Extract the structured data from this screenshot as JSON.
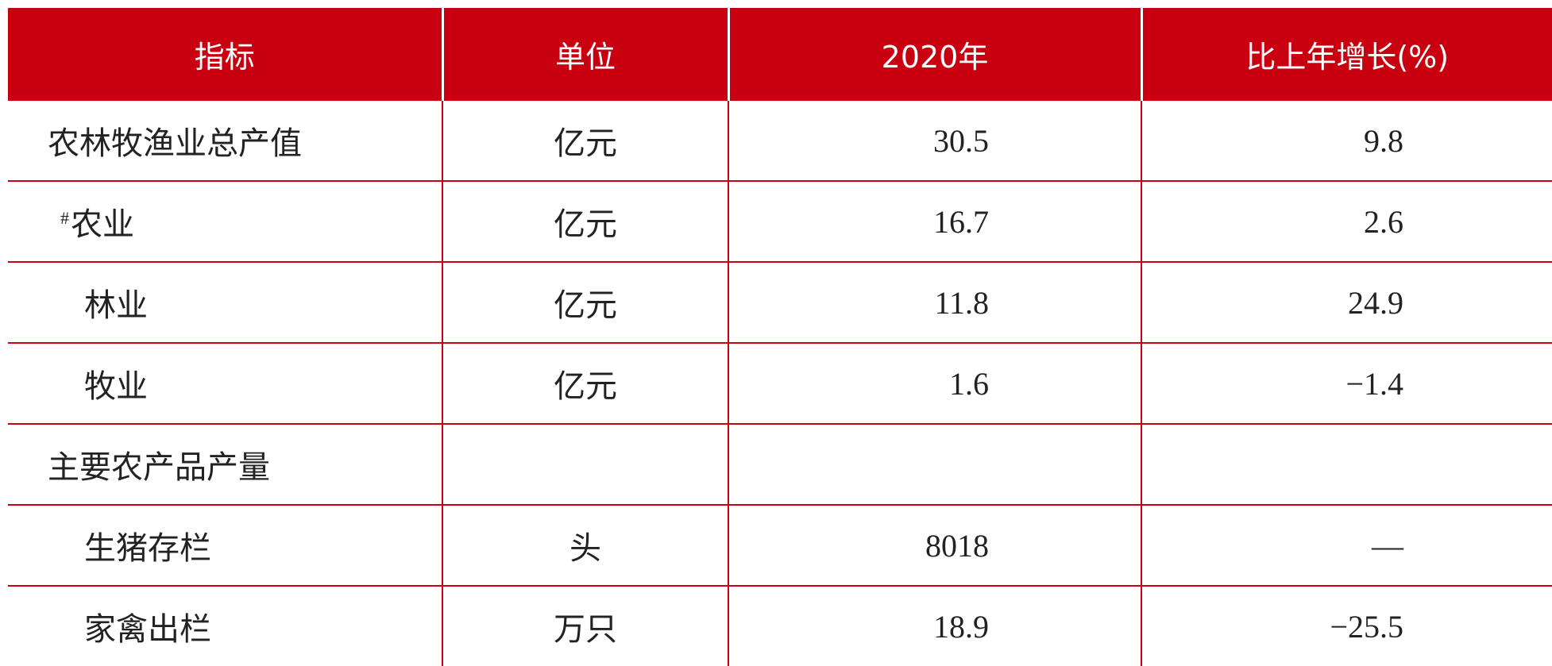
{
  "table": {
    "header": [
      "指标",
      "单位",
      "2020年",
      "比上年增长(%)"
    ],
    "rows": [
      {
        "name": "农林牧渔业总产值",
        "unit": "亿元",
        "value": "30.5",
        "growth": "9.8"
      },
      {
        "mark": "#",
        "name": "农业",
        "unit": "亿元",
        "value": "16.7",
        "growth": "2.6"
      },
      {
        "name": "林业",
        "unit": "亿元",
        "value": "11.8",
        "growth": "24.9"
      },
      {
        "name": "牧业",
        "unit": "亿元",
        "value": "1.6",
        "growth": "−1.4"
      },
      {
        "name": "主要农产品产量"
      },
      {
        "name": "生猪存栏",
        "unit": "头",
        "value": "8018",
        "growth": "—"
      },
      {
        "name": "家禽出栏",
        "unit": "万只",
        "value": "18.9",
        "growth": "−25.5"
      }
    ]
  }
}
